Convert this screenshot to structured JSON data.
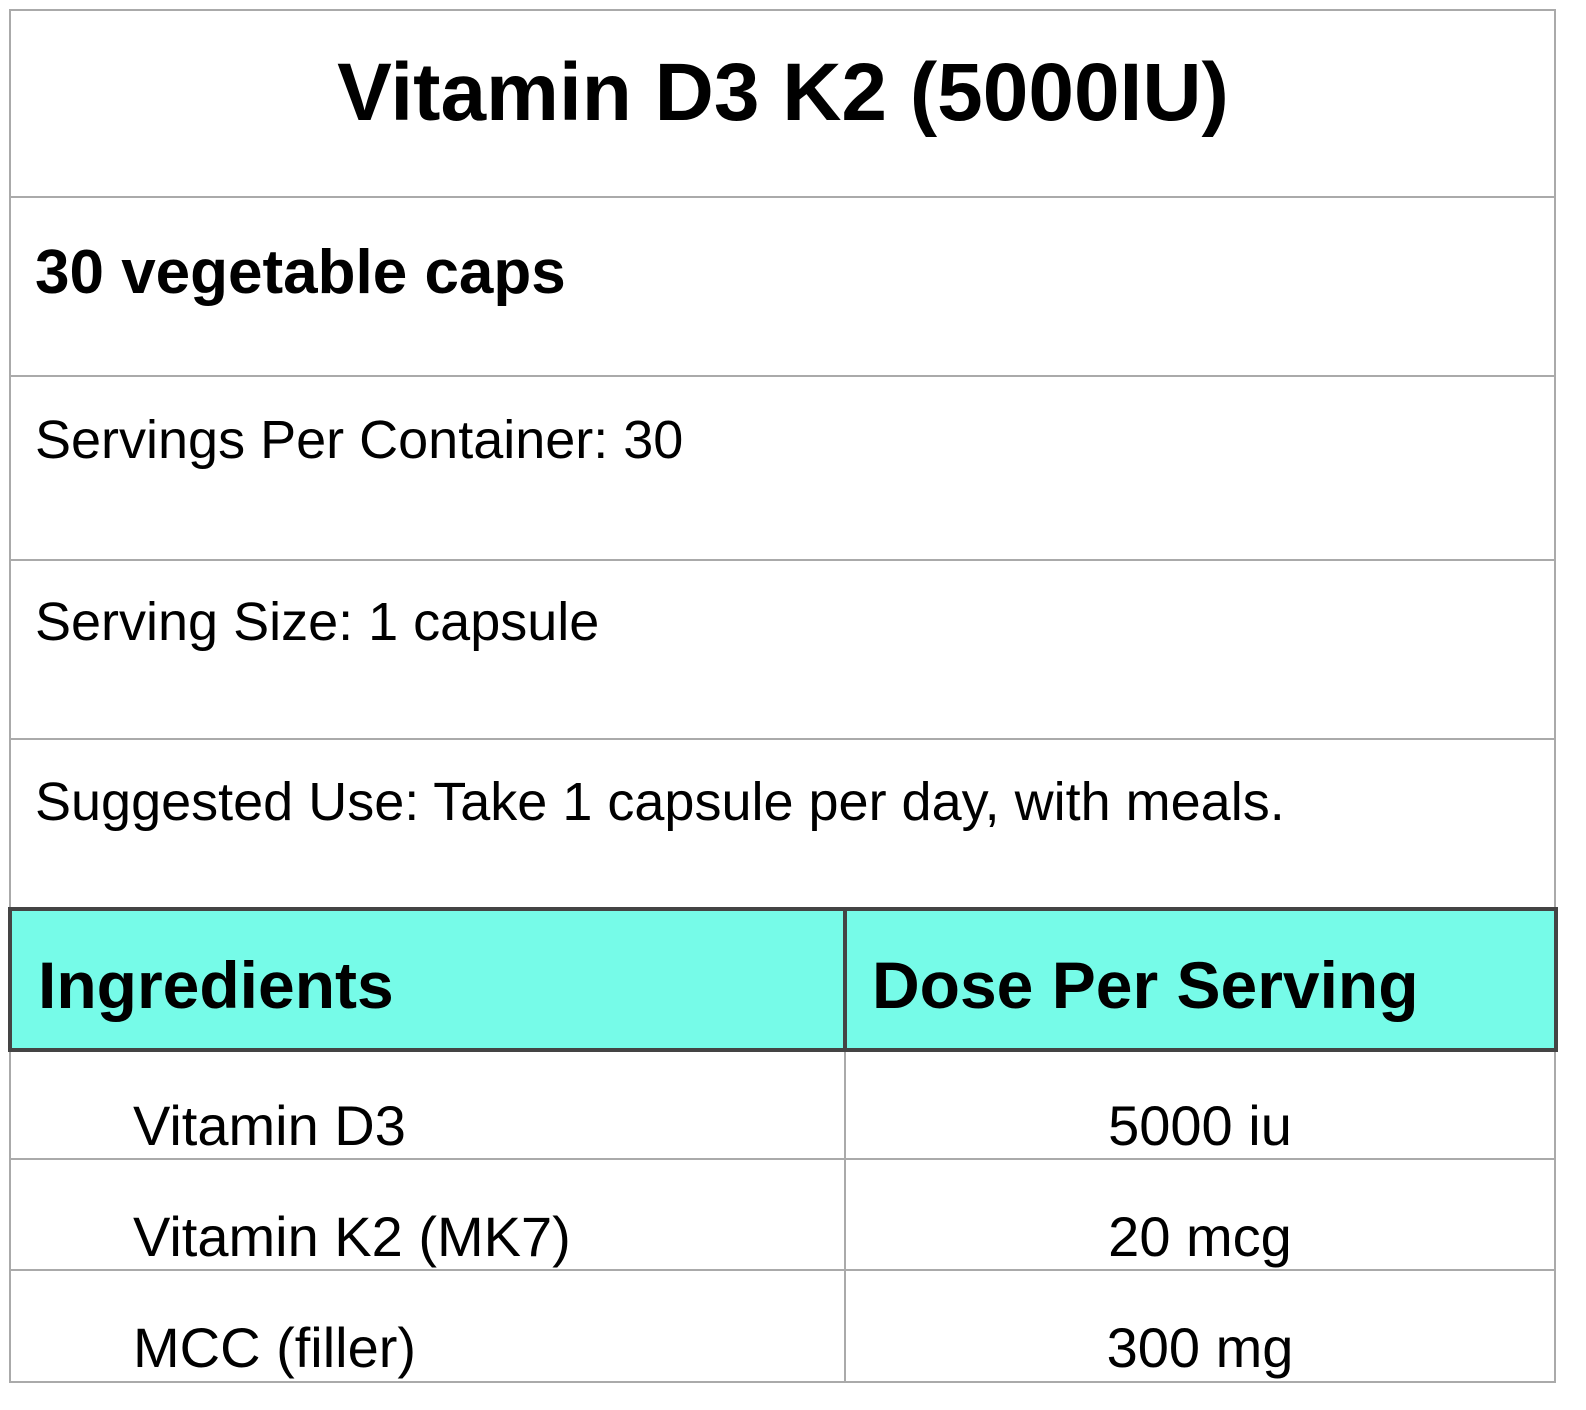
{
  "title": "Vitamin D3 K2 (5000IU)",
  "subtitle": "30 vegetable caps",
  "info": [
    "Servings Per Container: 30",
    "Serving Size: 1 capsule",
    "Suggested Use: Take 1 capsule per day, with meals."
  ],
  "table": {
    "header": [
      "Ingredients",
      "Dose Per Serving"
    ],
    "rows": [
      [
        "Vitamin D3",
        "5000 iu"
      ],
      [
        "Vitamin K2 (MK7)",
        "20 mcg"
      ],
      [
        "MCC (filler)",
        "300 mg"
      ]
    ]
  }
}
